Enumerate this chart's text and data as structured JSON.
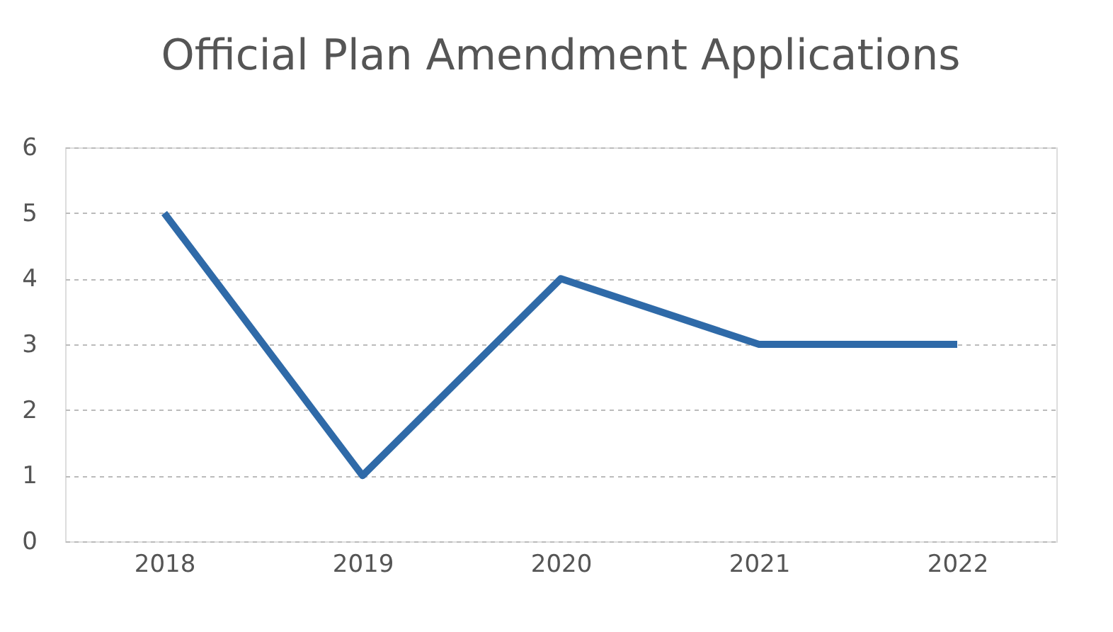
{
  "chart_data": {
    "type": "line",
    "title": "Official Plan Amendment Applications",
    "categories": [
      "2018",
      "2019",
      "2020",
      "2021",
      "2022"
    ],
    "series": [
      {
        "color": "#2f6aa8",
        "values": [
          5,
          1,
          4,
          3,
          3
        ]
      }
    ],
    "ylim": [
      0,
      6
    ],
    "yticks": [
      0,
      1,
      2,
      3,
      4,
      5,
      6
    ],
    "grid": "y",
    "marker": "none",
    "line_style": "solid",
    "legend": false
  }
}
